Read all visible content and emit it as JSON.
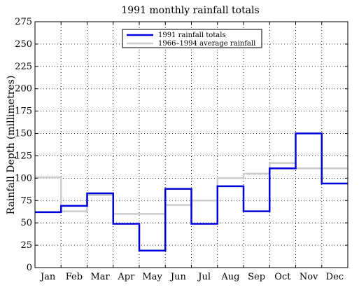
{
  "chart_data": {
    "type": "line",
    "title": "1991 monthly rainfall totals",
    "xlabel": "",
    "ylabel": "Rainfall Depth (millimetres)",
    "categories": [
      "Jan",
      "Feb",
      "Mar",
      "Apr",
      "May",
      "Jun",
      "Jul",
      "Aug",
      "Sep",
      "Oct",
      "Nov",
      "Dec"
    ],
    "ylim": [
      0,
      275
    ],
    "yticks": [
      0,
      25,
      50,
      75,
      100,
      125,
      150,
      175,
      200,
      225,
      250,
      275
    ],
    "grid": true,
    "legend_position": "top-center",
    "series": [
      {
        "name": "1991 rainfall totals",
        "color": "#0000dd",
        "style": "step",
        "values": [
          62,
          69,
          83,
          49,
          19,
          88,
          49,
          91,
          63,
          111,
          150,
          94
        ]
      },
      {
        "name": "1966–1994 average rainfall",
        "color": "#cccccc",
        "style": "step",
        "values": [
          101,
          63,
          81,
          60,
          60,
          70,
          75,
          100,
          105,
          117,
          111,
          111
        ]
      }
    ]
  }
}
